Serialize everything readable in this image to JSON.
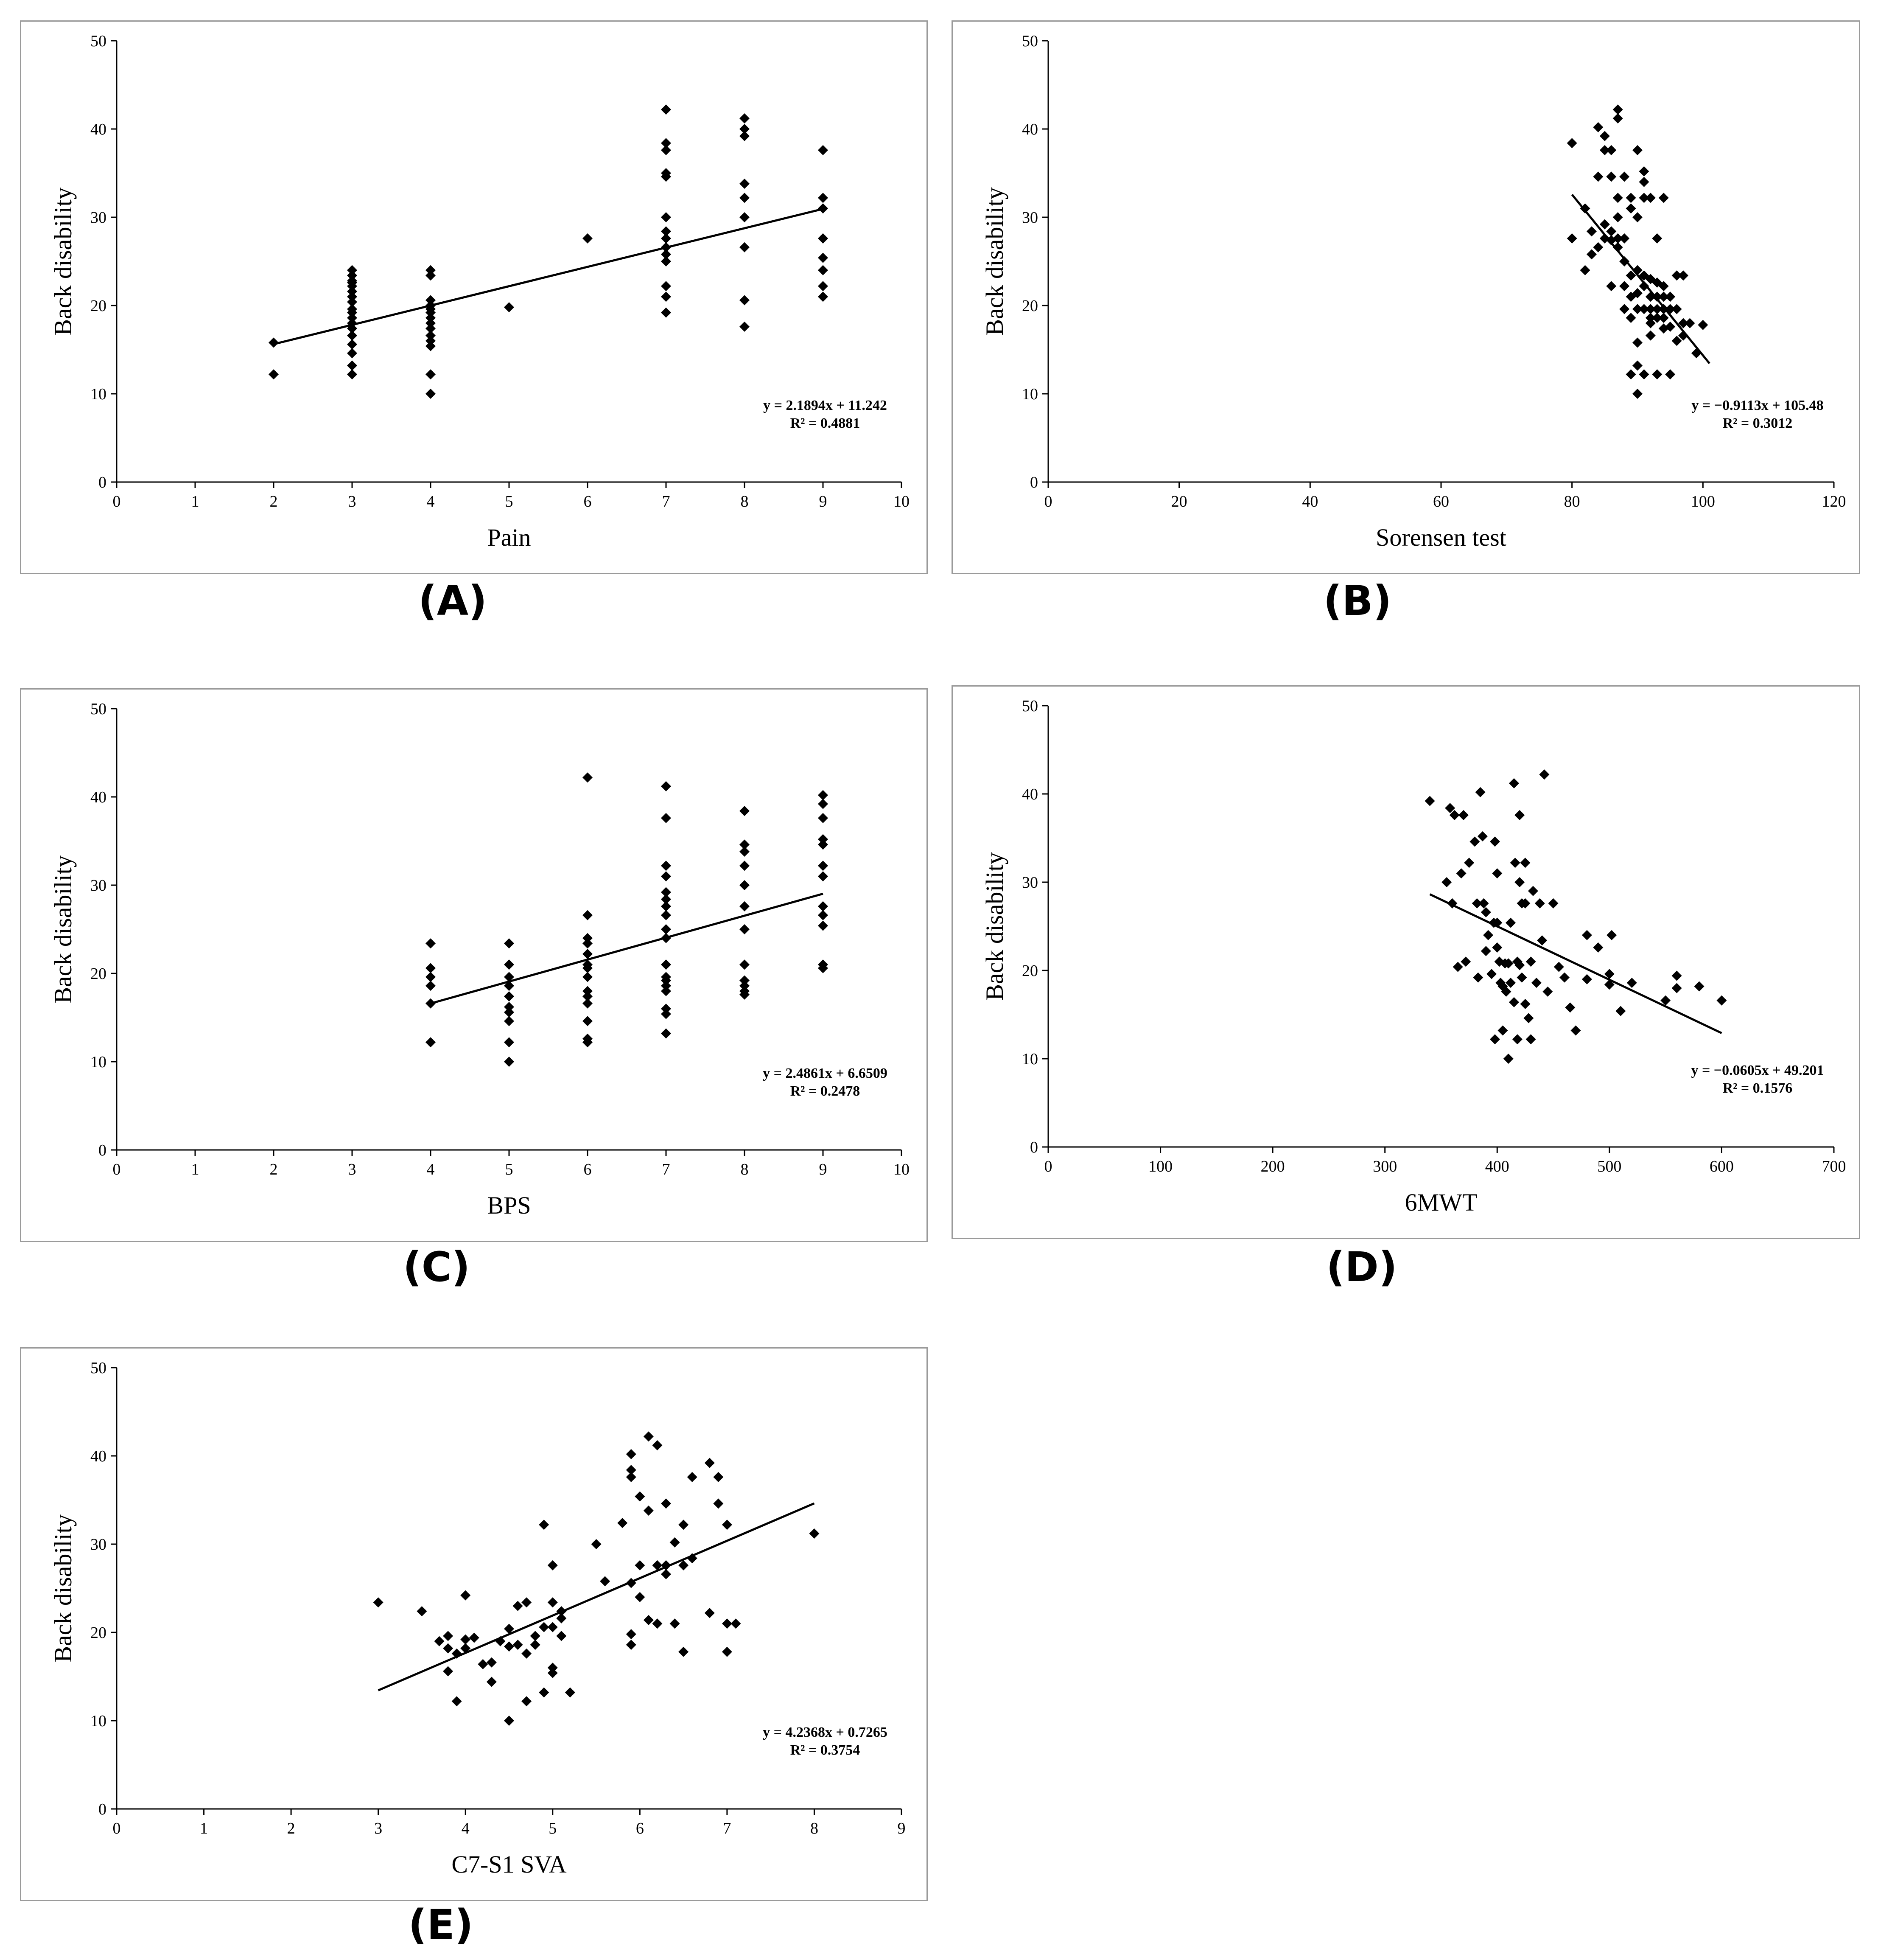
{
  "chart_data": [
    {
      "panel": "(A)",
      "type": "scatter",
      "xlabel": "Pain",
      "ylabel": "Back disability",
      "xlim": [
        0,
        10
      ],
      "ylim": [
        0,
        50
      ],
      "xticks": [
        0,
        1,
        2,
        3,
        4,
        5,
        6,
        7,
        8,
        9,
        10
      ],
      "yticks": [
        0,
        10,
        20,
        30,
        40,
        50
      ],
      "trendline": {
        "slope": 2.1894,
        "intercept": 11.242,
        "x_range": [
          2,
          9
        ]
      },
      "equation": "y = 2.1894x + 11.242",
      "r_squared": "R² = 0.4881",
      "annotation_position": "bottom-right",
      "x": [
        2,
        2,
        3,
        3,
        3,
        3,
        3,
        3,
        3,
        3,
        3,
        3,
        3,
        3,
        3,
        3,
        3,
        3,
        3,
        3,
        4,
        4,
        4,
        4,
        4,
        4,
        4,
        4,
        4,
        4,
        4,
        4,
        4,
        4,
        5,
        6,
        7,
        7,
        7,
        7,
        7,
        7,
        7,
        7,
        7,
        7,
        7,
        7,
        7,
        7,
        8,
        8,
        8,
        8,
        8,
        8,
        8,
        8,
        8,
        9,
        9,
        9,
        9,
        9,
        9,
        9,
        9,
        9
      ],
      "y": [
        15.8,
        12.2,
        24,
        23.4,
        22.8,
        22.2,
        21,
        20.4,
        19.6,
        18.6,
        18,
        17.4,
        16.6,
        15.6,
        14.6,
        13.2,
        12.2,
        22.6,
        21.6,
        19.2,
        24,
        23.4,
        20.6,
        20,
        19.6,
        19.2,
        18.6,
        18,
        17.4,
        16.6,
        16,
        15.4,
        12.2,
        10,
        19.8,
        27.6,
        42.2,
        38.4,
        37.6,
        35,
        34.6,
        30,
        28.4,
        27.6,
        26.6,
        25.8,
        25,
        22.2,
        21,
        19.2,
        41.2,
        40,
        39.2,
        33.8,
        32.2,
        30,
        26.6,
        20.6,
        17.6,
        37.6,
        32.2,
        31,
        27.6,
        27.6,
        25.4,
        24,
        22.2,
        21
      ]
    },
    {
      "panel": "(B)",
      "type": "scatter",
      "xlabel": "Sorensen test",
      "ylabel": "Back disability",
      "xlim": [
        0,
        120
      ],
      "ylim": [
        0,
        50
      ],
      "xticks": [
        0,
        20,
        40,
        60,
        80,
        100,
        120
      ],
      "yticks": [
        0,
        10,
        20,
        30,
        40,
        50
      ],
      "trendline": {
        "slope": -0.9113,
        "intercept": 105.48,
        "x_range": [
          80,
          101
        ]
      },
      "equation": "y =  −0.9113x + 105.48",
      "r_squared": "R² = 0.3012",
      "annotation_position": "bottom-right",
      "x": [
        80,
        80,
        82,
        82,
        83,
        83,
        84,
        84,
        84,
        85,
        85,
        85,
        85,
        86,
        86,
        86,
        86,
        86,
        87,
        87,
        87,
        87,
        87,
        87,
        88,
        88,
        88,
        88,
        88,
        89,
        89,
        89,
        89,
        89,
        89,
        90,
        90,
        90,
        90,
        90,
        90,
        90,
        90,
        91,
        91,
        91,
        91,
        91,
        91,
        91,
        92,
        92,
        92,
        92,
        92,
        92,
        92,
        93,
        93,
        93,
        93,
        93,
        93,
        94,
        94,
        94,
        94,
        94,
        94,
        95,
        95,
        95,
        95,
        96,
        96,
        96,
        97,
        97,
        97,
        98,
        99,
        100
      ],
      "y": [
        38.4,
        27.6,
        31,
        24,
        28.4,
        25.8,
        40.2,
        34.6,
        26.6,
        39.2,
        37.6,
        29.2,
        27.6,
        37.6,
        34.6,
        28.4,
        27.4,
        22.2,
        42.2,
        41.2,
        32.2,
        30,
        27.6,
        26.6,
        34.6,
        27.6,
        25,
        22.2,
        19.6,
        32.2,
        31,
        23.4,
        21,
        18.6,
        12.2,
        37.6,
        30,
        24,
        21.4,
        19.6,
        15.8,
        13.2,
        10,
        35.2,
        34,
        32.2,
        23.4,
        22.2,
        19.6,
        12.2,
        32.2,
        23,
        21,
        19.6,
        18.6,
        18,
        16.6,
        27.6,
        22.6,
        21,
        19.6,
        18.6,
        12.2,
        32.2,
        22.2,
        21,
        19.6,
        18.6,
        17.4,
        21,
        19.6,
        17.6,
        12.2,
        23.4,
        19.6,
        16,
        23.4,
        18,
        16.6,
        18,
        14.6,
        17.8
      ]
    },
    {
      "panel": "(C)",
      "type": "scatter",
      "xlabel": "BPS",
      "ylabel": "Back disability",
      "xlim": [
        0,
        10
      ],
      "ylim": [
        0,
        50
      ],
      "xticks": [
        0,
        1,
        2,
        3,
        4,
        5,
        6,
        7,
        8,
        9,
        10
      ],
      "yticks": [
        0,
        10,
        20,
        30,
        40,
        50
      ],
      "trendline": {
        "slope": 2.4861,
        "intercept": 6.6509,
        "x_range": [
          4,
          9
        ]
      },
      "equation": "y = 2.4861x + 6.6509",
      "r_squared": "R² = 0.2478",
      "annotation_position": "bottom-right",
      "x": [
        4,
        4,
        4,
        4,
        4,
        4,
        5,
        5,
        5,
        5,
        5,
        5,
        5,
        5,
        5,
        5,
        6,
        6,
        6,
        6,
        6,
        6,
        6,
        6,
        6,
        6,
        6,
        6,
        6,
        6,
        7,
        7,
        7,
        7,
        7,
        7,
        7,
        7,
        7,
        7,
        7,
        7,
        7,
        7,
        7,
        7,
        7,
        7,
        8,
        8,
        8,
        8,
        8,
        8,
        8,
        8,
        8,
        8,
        8,
        8,
        9,
        9,
        9,
        9,
        9,
        9,
        9,
        9,
        9,
        9,
        9,
        9
      ],
      "y": [
        23.4,
        20.6,
        19.6,
        18.6,
        16.6,
        12.2,
        23.4,
        21,
        19.6,
        18.6,
        17.4,
        16.2,
        15.6,
        14.6,
        12.2,
        10,
        42.2,
        26.6,
        24,
        23.4,
        22.2,
        21,
        20.6,
        19.6,
        18,
        17.4,
        16.6,
        14.6,
        12.6,
        12.2,
        41.2,
        37.6,
        32.2,
        31,
        29.2,
        27.6,
        26.6,
        25,
        24,
        21,
        19.6,
        19.2,
        18.6,
        18,
        16,
        15.4,
        13.2,
        28.4,
        38.4,
        34.6,
        33.8,
        32.2,
        30,
        27.6,
        25,
        21,
        19.2,
        18.6,
        18,
        17.6,
        40.2,
        39.2,
        37.6,
        35.2,
        34.6,
        32.2,
        31,
        27.6,
        26.6,
        25.4,
        21,
        20.6
      ]
    },
    {
      "panel": "(D)",
      "type": "scatter",
      "xlabel": "6MWT",
      "ylabel": "Back disability",
      "xlim": [
        0,
        700
      ],
      "ylim": [
        0,
        50
      ],
      "xticks": [
        0,
        100,
        200,
        300,
        400,
        500,
        600,
        700
      ],
      "yticks": [
        0,
        10,
        20,
        30,
        40,
        50
      ],
      "trendline": {
        "slope": -0.0605,
        "intercept": 49.201,
        "x_range": [
          340,
          600
        ]
      },
      "equation": "y =  −0.0605x + 49.201",
      "r_squared": "R² = 0.1576",
      "annotation_position": "bottom-right",
      "x": [
        340,
        355,
        358,
        360,
        362,
        365,
        368,
        370,
        372,
        375,
        380,
        382,
        383,
        385,
        387,
        388,
        390,
        390,
        392,
        395,
        397,
        398,
        398,
        400,
        400,
        400,
        402,
        403,
        405,
        405,
        407,
        408,
        410,
        410,
        412,
        412,
        415,
        415,
        416,
        418,
        418,
        420,
        420,
        420,
        422,
        422,
        425,
        425,
        425,
        428,
        430,
        430,
        432,
        435,
        438,
        440,
        442,
        445,
        450,
        455,
        460,
        465,
        470,
        480,
        480,
        490,
        500,
        500,
        502,
        510,
        520,
        550,
        560,
        560,
        580,
        600
      ],
      "y": [
        39.2,
        30,
        38.4,
        27.6,
        37.6,
        20.4,
        31,
        37.6,
        21,
        32.2,
        34.6,
        27.6,
        19.2,
        40.2,
        35.2,
        27.6,
        26.6,
        22.2,
        24,
        19.6,
        25.4,
        34.6,
        12.2,
        31,
        25.4,
        22.6,
        21,
        18.6,
        13.2,
        18.2,
        20.8,
        17.6,
        10,
        20.8,
        25.4,
        18.6,
        16.4,
        41.2,
        32.2,
        21,
        12.2,
        37.6,
        30,
        20.6,
        27.6,
        19.2,
        32.2,
        27.6,
        16.2,
        14.6,
        21,
        12.2,
        29,
        18.6,
        27.6,
        23.4,
        42.2,
        17.6,
        27.6,
        20.4,
        19.2,
        15.8,
        13.2,
        24,
        19,
        22.6,
        18.4,
        19.6,
        24,
        15.4,
        18.6,
        16.6,
        19.4,
        18,
        18.2,
        16.6
      ]
    },
    {
      "panel": "(E)",
      "type": "scatter",
      "xlabel": "C7-S1 SVA",
      "ylabel": "Back disability",
      "xlim": [
        0,
        9
      ],
      "ylim": [
        0,
        50
      ],
      "xticks": [
        0,
        1,
        2,
        3,
        4,
        5,
        6,
        7,
        8,
        9
      ],
      "yticks": [
        0,
        10,
        20,
        30,
        40,
        50
      ],
      "trendline": {
        "slope": 4.2368,
        "intercept": 0.7265,
        "x_range": [
          3,
          8
        ]
      },
      "equation": "y = 4.2368x + 0.7265",
      "r_squared": "R² = 0.3754",
      "annotation_position": "bottom-right",
      "x": [
        3,
        3.5,
        3.7,
        3.8,
        3.8,
        3.8,
        3.9,
        3.9,
        4,
        4,
        4,
        4.1,
        4.2,
        4.3,
        4.3,
        4.4,
        4.5,
        4.5,
        4.5,
        4.6,
        4.6,
        4.7,
        4.7,
        4.7,
        4.8,
        4.8,
        4.9,
        4.9,
        4.9,
        5,
        5,
        5,
        5,
        5,
        5.1,
        5.1,
        5.1,
        5.2,
        5.5,
        5.6,
        5.8,
        5.9,
        5.9,
        5.9,
        5.9,
        5.9,
        5.9,
        6,
        6,
        6,
        6.1,
        6.1,
        6.1,
        6.2,
        6.2,
        6.2,
        6.3,
        6.3,
        6.3,
        6.4,
        6.4,
        6.5,
        6.5,
        6.5,
        6.6,
        6.6,
        6.8,
        6.8,
        6.9,
        6.9,
        7,
        7,
        7,
        7.1,
        8
      ],
      "y": [
        23.4,
        22.4,
        19,
        19.6,
        18.2,
        15.6,
        17.6,
        12.2,
        24.2,
        19.2,
        18.2,
        19.4,
        16.4,
        16.6,
        14.4,
        19,
        20.4,
        18.4,
        10,
        23,
        18.6,
        23.4,
        17.6,
        12.2,
        19.6,
        18.6,
        32.2,
        20.6,
        13.2,
        27.6,
        23.4,
        20.6,
        16,
        15.4,
        21.6,
        22.4,
        19.6,
        13.2,
        30,
        25.8,
        32.4,
        40.2,
        38.4,
        37.6,
        25.6,
        19.8,
        18.6,
        35.4,
        27.6,
        24,
        42.2,
        33.8,
        21.4,
        41.2,
        27.6,
        21,
        34.6,
        27.6,
        26.6,
        30.2,
        21,
        32.2,
        27.6,
        17.8,
        37.6,
        28.4,
        39.2,
        22.2,
        37.6,
        34.6,
        32.2,
        21,
        17.8,
        21,
        31.2
      ]
    }
  ]
}
